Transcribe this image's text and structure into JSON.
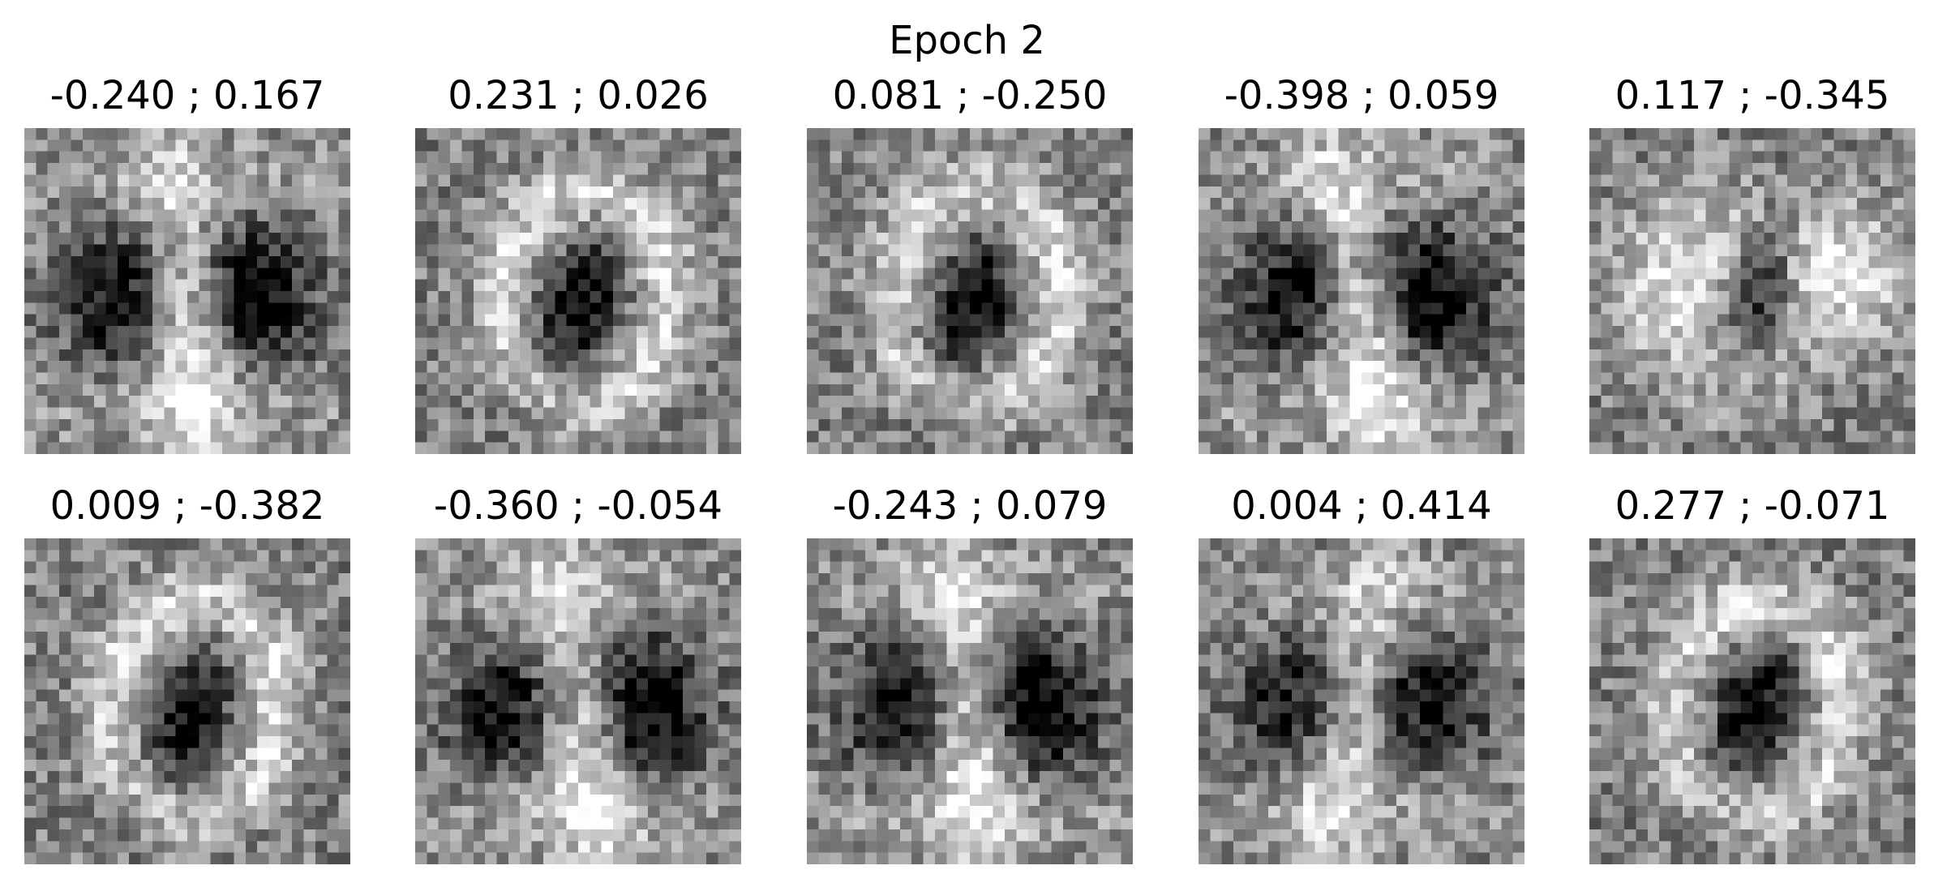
{
  "figure": {
    "suptitle": "Epoch 2",
    "colormap": "gray",
    "panels": [
      {
        "title": "-0.240 ; 0.167",
        "latent": [
          -0.24,
          0.167
        ],
        "depicts": "bilobed-dark"
      },
      {
        "title": "0.231 ; 0.026",
        "latent": [
          0.231,
          0.026
        ],
        "depicts": "ring-zero"
      },
      {
        "title": "0.081 ; -0.250",
        "latent": [
          0.081,
          -0.25
        ],
        "depicts": "ring-zero"
      },
      {
        "title": "-0.398 ; 0.059",
        "latent": [
          -0.398,
          0.059
        ],
        "depicts": "bilobed-dark"
      },
      {
        "title": "0.117 ; -0.345",
        "latent": [
          0.117,
          -0.345
        ],
        "depicts": "bright-band"
      },
      {
        "title": "0.009 ; -0.382",
        "latent": [
          0.009,
          -0.382
        ],
        "depicts": "ring-zero"
      },
      {
        "title": "-0.360 ; -0.054",
        "latent": [
          -0.36,
          -0.054
        ],
        "depicts": "bilobed-dark"
      },
      {
        "title": "-0.243 ; 0.079",
        "latent": [
          -0.243,
          0.079
        ],
        "depicts": "bilobed-dark"
      },
      {
        "title": "0.004 ; 0.414",
        "latent": [
          0.004,
          0.414
        ],
        "depicts": "slanted-stroke"
      },
      {
        "title": "0.277 ; -0.071",
        "latent": [
          0.277,
          -0.071
        ],
        "depicts": "ring-zero"
      }
    ]
  }
}
